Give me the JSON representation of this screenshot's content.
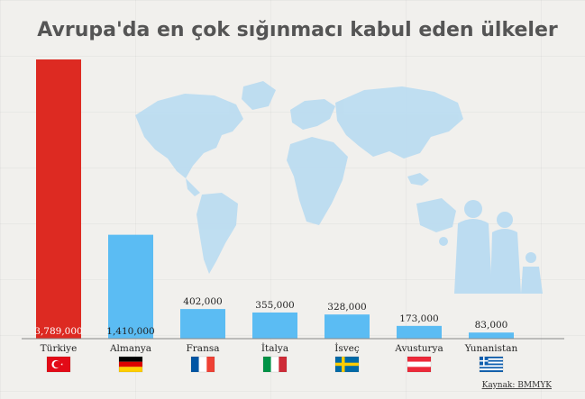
{
  "chart_data": {
    "type": "bar",
    "title": "Avrupa'da en çok sığınmacı kabul eden ülkeler",
    "categories": [
      "Türkiye",
      "Almanya",
      "Fransa",
      "İtalya",
      "İsveç",
      "Avusturya",
      "Yunanistan"
    ],
    "values": [
      3789000,
      1410000,
      402000,
      355000,
      328000,
      173000,
      83000
    ],
    "value_labels": [
      "3,789,000",
      "1,410,000",
      "402,000",
      "355,000",
      "328,000",
      "173,000",
      "83,000"
    ],
    "flags": [
      "turkey-flag-icon",
      "germany-flag-icon",
      "france-flag-icon",
      "italy-flag-icon",
      "sweden-flag-icon",
      "austria-flag-icon",
      "greece-flag-icon"
    ],
    "ylim": [
      0,
      3789000
    ],
    "grid": false,
    "legend": "none",
    "source": "Kaynak: BMMYK",
    "colors": {
      "highlight_bar": "#dd2a22",
      "bar": "#5bbcf3",
      "map": "#bcdcf1",
      "title": "#555555",
      "axis": "#888888"
    }
  }
}
